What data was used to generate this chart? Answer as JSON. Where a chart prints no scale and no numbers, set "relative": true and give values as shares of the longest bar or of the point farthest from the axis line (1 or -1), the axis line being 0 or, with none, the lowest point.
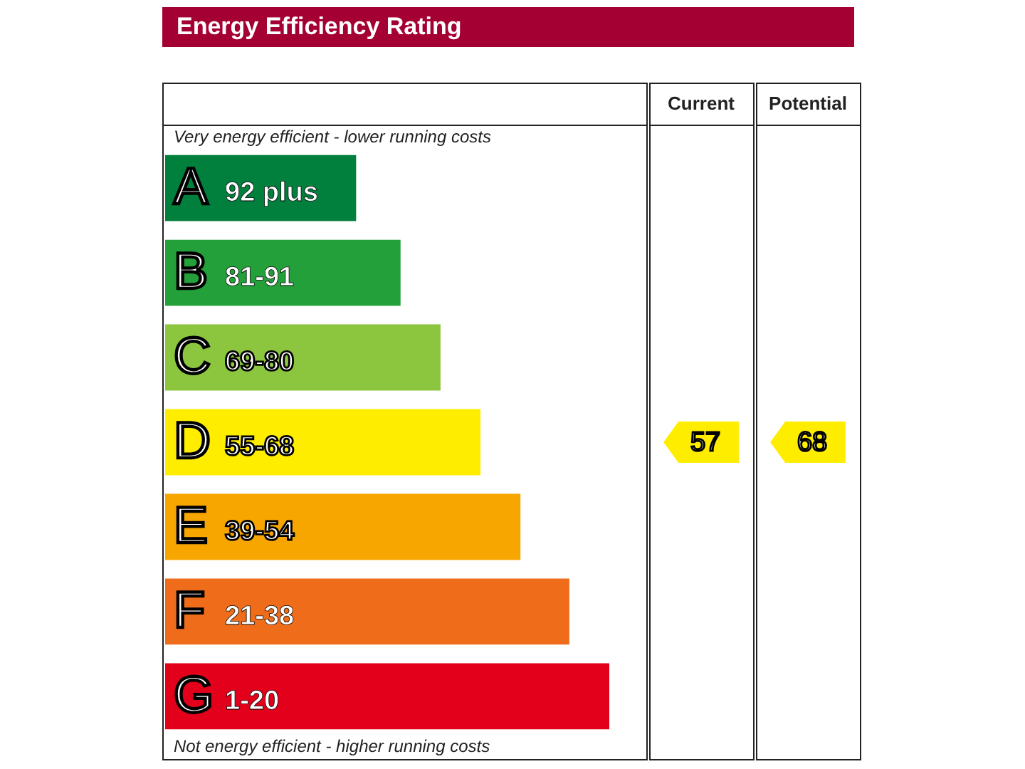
{
  "chart_data": {
    "type": "bar",
    "title": "Energy Efficiency Rating",
    "orientation": "horizontal",
    "relative": true,
    "categories": [
      "A",
      "B",
      "C",
      "D",
      "E",
      "F",
      "G"
    ],
    "values": [
      0.43,
      0.53,
      0.62,
      0.71,
      0.8,
      0.91,
      1
    ],
    "colors": [
      "#007f3d",
      "#23a03a",
      "#8cc63f",
      "#ffed00",
      "#f7a600",
      "#ef6c1a",
      "#e2001a"
    ],
    "annotations": [
      "Very energy efficient - lower running costs",
      "Not energy efficient - higher running costs",
      "Current",
      "Potential",
      "57",
      "68",
      "92 plus",
      "81-91",
      "69-80",
      "55-68",
      "39-54",
      "21-38",
      "1-20"
    ]
  }
}
